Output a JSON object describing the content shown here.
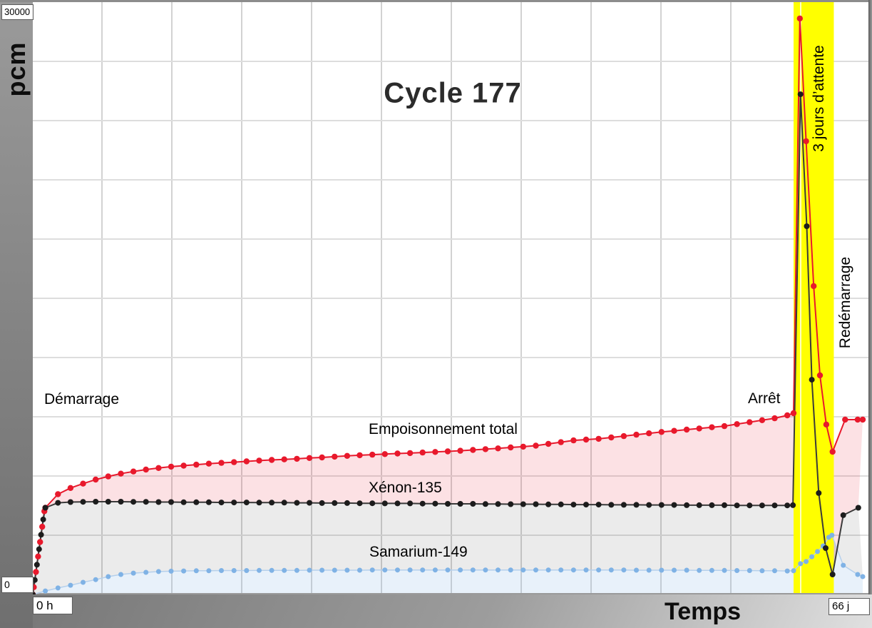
{
  "title": "Cycle 177",
  "axes": {
    "y_title": "pcm",
    "x_title": "Temps",
    "y_max_value": "30000",
    "y_min_value": "0",
    "x_min_value": "0 h",
    "x_max_value": "66 j"
  },
  "annotations": {
    "startup": "Démarrage",
    "shutdown": "Arrêt",
    "wait_band": "3 jours d’attente",
    "restart": "Redémarrage",
    "label_total": "Empoisonnement total",
    "label_xenon": "Xénon-135",
    "label_samarium": "Samarium-149"
  },
  "colors": {
    "band": "#ffff00",
    "grid_vertical": "#d2d2d2",
    "grid_horizontal": "#dddddd",
    "red": "#e8192c",
    "black": "#1c1c1c",
    "blue_dot": "#7fb2e5",
    "blue_line": "#b5d0ec",
    "fill_red": "rgba(232,25,44,0.13)",
    "fill_gray": "rgba(60,60,60,0.10)",
    "fill_blue": "rgba(127,178,229,0.18)"
  },
  "chart_data": {
    "type": "line",
    "title": "Cycle 177",
    "xlabel": "Temps",
    "ylabel": "pcm",
    "x_unit": "jours",
    "xlim_days": [
      0,
      66
    ],
    "ylim_pcm": [
      0,
      30000
    ],
    "grid": true,
    "shutdown_day": 60.5,
    "wait_band_days": [
      60.5,
      63.7
    ],
    "series": [
      {
        "name": "Empoisonnement total",
        "color": "#e8192c",
        "fill": "rgba(232,25,44,0.13)",
        "dot_r": 4.2,
        "points": [
          [
            0,
            0
          ],
          [
            0.08,
            370
          ],
          [
            0.25,
            1150
          ],
          [
            0.42,
            1940
          ],
          [
            0.58,
            2680
          ],
          [
            0.75,
            3460
          ],
          [
            0.92,
            4250
          ],
          [
            1,
            4430
          ],
          [
            2,
            5120
          ],
          [
            3,
            5440
          ],
          [
            4,
            5660
          ],
          [
            5,
            5870
          ],
          [
            6,
            6030
          ],
          [
            7,
            6170
          ],
          [
            8,
            6280
          ],
          [
            9,
            6380
          ],
          [
            10,
            6460
          ],
          [
            11,
            6530
          ],
          [
            12,
            6580
          ],
          [
            13,
            6630
          ],
          [
            14,
            6680
          ],
          [
            15,
            6720
          ],
          [
            16,
            6760
          ],
          [
            17,
            6800
          ],
          [
            18,
            6840
          ],
          [
            19,
            6870
          ],
          [
            20,
            6900
          ],
          [
            21,
            6930
          ],
          [
            22,
            6970
          ],
          [
            23,
            7000
          ],
          [
            24,
            7040
          ],
          [
            25,
            7080
          ],
          [
            26,
            7110
          ],
          [
            27,
            7140
          ],
          [
            28,
            7170
          ],
          [
            29,
            7200
          ],
          [
            30,
            7220
          ],
          [
            31,
            7250
          ],
          [
            32,
            7280
          ],
          [
            33,
            7310
          ],
          [
            34,
            7340
          ],
          [
            35,
            7380
          ],
          [
            36,
            7420
          ],
          [
            37,
            7460
          ],
          [
            38,
            7510
          ],
          [
            39,
            7550
          ],
          [
            40,
            7600
          ],
          [
            41,
            7690
          ],
          [
            42,
            7780
          ],
          [
            43,
            7870
          ],
          [
            44,
            7910
          ],
          [
            45,
            7950
          ],
          [
            46,
            8020
          ],
          [
            47,
            8090
          ],
          [
            48,
            8160
          ],
          [
            49,
            8230
          ],
          [
            50,
            8300
          ],
          [
            51,
            8360
          ],
          [
            52,
            8420
          ],
          [
            53,
            8480
          ],
          [
            54,
            8540
          ],
          [
            55,
            8600
          ],
          [
            56,
            8700
          ],
          [
            57,
            8800
          ],
          [
            58,
            8900
          ],
          [
            59,
            9000
          ],
          [
            60,
            9150
          ],
          [
            60.5,
            9260
          ],
          [
            61,
            29420
          ],
          [
            61.5,
            23150
          ],
          [
            62.1,
            15750
          ],
          [
            62.6,
            11190
          ],
          [
            63.1,
            8680
          ],
          [
            63.6,
            7290
          ],
          [
            64.6,
            8930
          ],
          [
            65.6,
            8930
          ],
          [
            66,
            8930
          ]
        ]
      },
      {
        "name": "Xénon-135",
        "color": "#1c1c1c",
        "fill": "rgba(60,60,60,0.10)",
        "dot_r": 4.0,
        "points": [
          [
            0,
            0
          ],
          [
            0.16,
            740
          ],
          [
            0.33,
            1520
          ],
          [
            0.5,
            2310
          ],
          [
            0.66,
            3050
          ],
          [
            0.83,
            3830
          ],
          [
            1,
            4430
          ],
          [
            2,
            4680
          ],
          [
            3,
            4720
          ],
          [
            4,
            4730
          ],
          [
            5,
            4740
          ],
          [
            6,
            4740
          ],
          [
            7,
            4740
          ],
          [
            8,
            4730
          ],
          [
            9,
            4730
          ],
          [
            10,
            4720
          ],
          [
            11,
            4720
          ],
          [
            12,
            4710
          ],
          [
            13,
            4710
          ],
          [
            14,
            4710
          ],
          [
            15,
            4700
          ],
          [
            16,
            4700
          ],
          [
            17,
            4700
          ],
          [
            18,
            4690
          ],
          [
            19,
            4690
          ],
          [
            20,
            4690
          ],
          [
            21,
            4680
          ],
          [
            22,
            4680
          ],
          [
            23,
            4670
          ],
          [
            24,
            4670
          ],
          [
            25,
            4670
          ],
          [
            26,
            4660
          ],
          [
            27,
            4660
          ],
          [
            28,
            4650
          ],
          [
            29,
            4650
          ],
          [
            30,
            4650
          ],
          [
            31,
            4640
          ],
          [
            32,
            4640
          ],
          [
            33,
            4630
          ],
          [
            34,
            4630
          ],
          [
            35,
            4630
          ],
          [
            36,
            4620
          ],
          [
            37,
            4620
          ],
          [
            38,
            4610
          ],
          [
            39,
            4610
          ],
          [
            40,
            4610
          ],
          [
            41,
            4600
          ],
          [
            42,
            4600
          ],
          [
            43,
            4590
          ],
          [
            44,
            4590
          ],
          [
            45,
            4590
          ],
          [
            46,
            4580
          ],
          [
            47,
            4580
          ],
          [
            48,
            4580
          ],
          [
            49,
            4570
          ],
          [
            50,
            4570
          ],
          [
            51,
            4570
          ],
          [
            52,
            4560
          ],
          [
            53,
            4560
          ],
          [
            54,
            4560
          ],
          [
            55,
            4560
          ],
          [
            56,
            4550
          ],
          [
            57,
            4550
          ],
          [
            58,
            4550
          ],
          [
            59,
            4550
          ],
          [
            60,
            4550
          ],
          [
            60.45,
            4560
          ],
          [
            61.05,
            25550
          ],
          [
            61.55,
            18810
          ],
          [
            61.95,
            10970
          ],
          [
            62.5,
            5180
          ],
          [
            63.05,
            2370
          ],
          [
            63.6,
            1020
          ],
          [
            64.45,
            4050
          ],
          [
            65.65,
            4430
          ]
        ]
      },
      {
        "name": "Samarium-149",
        "color": "#7fb2e5",
        "line_color": "#b5d0ec",
        "fill": "rgba(127,178,229,0.18)",
        "dot_r": 3.5,
        "points": [
          [
            0,
            0
          ],
          [
            1,
            180
          ],
          [
            2,
            330
          ],
          [
            3,
            470
          ],
          [
            4,
            620
          ],
          [
            5,
            760
          ],
          [
            6,
            910
          ],
          [
            7,
            1020
          ],
          [
            8,
            1090
          ],
          [
            9,
            1130
          ],
          [
            10,
            1170
          ],
          [
            11,
            1190
          ],
          [
            12,
            1200
          ],
          [
            13,
            1210
          ],
          [
            14,
            1210
          ],
          [
            15,
            1220
          ],
          [
            16,
            1220
          ],
          [
            17,
            1220
          ],
          [
            18,
            1230
          ],
          [
            19,
            1230
          ],
          [
            20,
            1230
          ],
          [
            21,
            1230
          ],
          [
            22,
            1240
          ],
          [
            23,
            1240
          ],
          [
            24,
            1240
          ],
          [
            25,
            1240
          ],
          [
            26,
            1240
          ],
          [
            27,
            1250
          ],
          [
            28,
            1250
          ],
          [
            29,
            1250
          ],
          [
            30,
            1250
          ],
          [
            31,
            1250
          ],
          [
            32,
            1250
          ],
          [
            33,
            1250
          ],
          [
            34,
            1250
          ],
          [
            35,
            1250
          ],
          [
            36,
            1250
          ],
          [
            37,
            1250
          ],
          [
            38,
            1250
          ],
          [
            39,
            1250
          ],
          [
            40,
            1250
          ],
          [
            41,
            1250
          ],
          [
            42,
            1250
          ],
          [
            43,
            1250
          ],
          [
            44,
            1250
          ],
          [
            45,
            1250
          ],
          [
            46,
            1250
          ],
          [
            47,
            1250
          ],
          [
            48,
            1240
          ],
          [
            49,
            1240
          ],
          [
            50,
            1240
          ],
          [
            51,
            1240
          ],
          [
            52,
            1240
          ],
          [
            53,
            1230
          ],
          [
            54,
            1230
          ],
          [
            55,
            1230
          ],
          [
            56,
            1220
          ],
          [
            57,
            1220
          ],
          [
            58,
            1210
          ],
          [
            59,
            1210
          ],
          [
            60,
            1200
          ],
          [
            60.5,
            1210
          ],
          [
            61.05,
            1570
          ],
          [
            61.5,
            1680
          ],
          [
            61.95,
            1930
          ],
          [
            62.4,
            2190
          ],
          [
            62.85,
            2480
          ],
          [
            63.3,
            2920
          ],
          [
            63.55,
            3025
          ],
          [
            64.45,
            1490
          ],
          [
            65.6,
            1020
          ],
          [
            66,
            910
          ]
        ]
      }
    ]
  }
}
